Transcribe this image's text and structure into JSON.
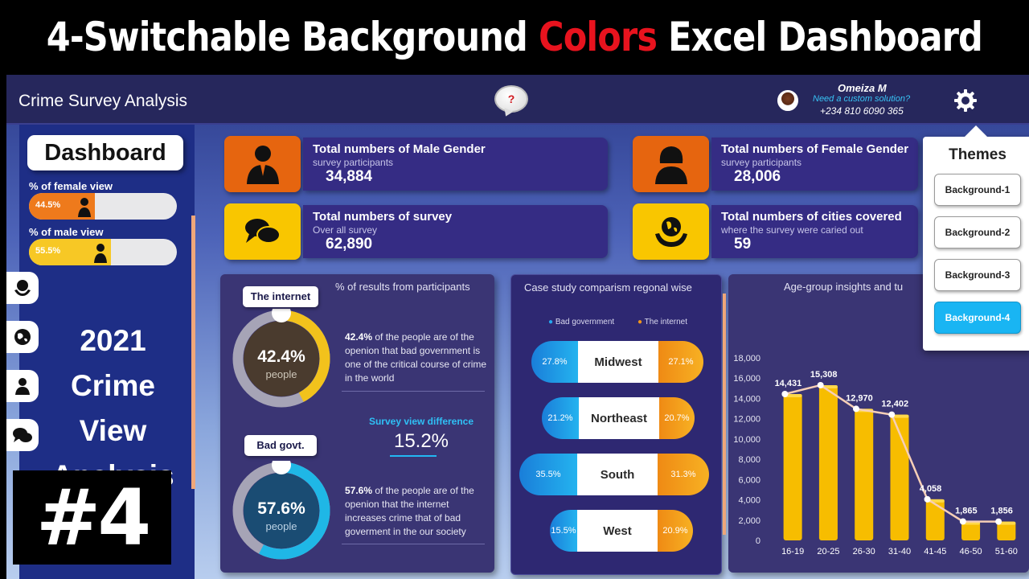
{
  "banner": {
    "part1": "4-Switchable Background ",
    "highlight": "Colors",
    "part2": " Excel Dashboard"
  },
  "header": {
    "title": "Crime Survey Analysis",
    "help_icon": "?",
    "user": {
      "name": "Omeiza M",
      "tagline": "Need a custom solution?",
      "phone": "+234 810 6090 365"
    }
  },
  "sidebar": {
    "dashboard_label": "Dashboard",
    "female_label": "% of female view",
    "female_value": "44.5%",
    "male_label": "% of male view",
    "male_value": "55.5%",
    "headline": [
      "2021",
      "Crime",
      "View",
      "Analysis"
    ]
  },
  "badge": "#4",
  "kpis": [
    {
      "title": "Total numbers of Male Gender",
      "sub": "survey participants",
      "value": "34,884"
    },
    {
      "title": "Total numbers of Female Gender",
      "sub": "survey participants",
      "value": "28,006"
    },
    {
      "title": "Total numbers of survey",
      "sub": "Over all survey",
      "value": "62,890"
    },
    {
      "title": "Total numbers of cities covered",
      "sub": "where the survey were caried out",
      "value": "59"
    }
  ],
  "results_panel": {
    "title": "% of results from participants",
    "internet": {
      "label": "The internet",
      "pct": "42.4%",
      "unit": "people",
      "fraction": 0.424,
      "desc_bold": "42.4%",
      "desc": " of the people are of the openion that bad government is one of the critical course of crime in the world"
    },
    "diff_label": "Survey view difference",
    "diff_value": "15.2%",
    "govt": {
      "label": "Bad govt.",
      "pct": "57.6%",
      "unit": "people",
      "fraction": 0.576,
      "desc_bold": "57.6%",
      "desc": " of the people are of the openion that the internet increases crime that of bad goverment in the our society"
    }
  },
  "region_panel": {
    "title": "Case study comparism regonal wise",
    "legend": [
      "Bad government",
      "The internet"
    ],
    "rows": [
      {
        "region": "Midwest",
        "left": "27.8%",
        "right": "27.1%"
      },
      {
        "region": "Northeast",
        "left": "21.2%",
        "right": "20.7%"
      },
      {
        "region": "South",
        "left": "35.5%",
        "right": "31.3%"
      },
      {
        "region": "West",
        "left": "15.5%",
        "right": "20.9%"
      }
    ]
  },
  "age_panel": {
    "title": "Age-group insights and tu"
  },
  "chart_data": {
    "type": "bar",
    "title": "Age-group insights and tu",
    "categories": [
      "16-19",
      "20-25",
      "26-30",
      "31-40",
      "41-45",
      "46-50",
      "51-60"
    ],
    "values": [
      14431,
      15308,
      12970,
      12402,
      4058,
      1865,
      1856
    ],
    "data_labels": [
      "14,431",
      "15,308",
      "12,970",
      "12,402",
      "4,058",
      "1,865",
      "1,856"
    ],
    "ylim": [
      0,
      18000
    ],
    "yticks": [
      "0",
      "2,000",
      "4,000",
      "6,000",
      "8,000",
      "10,000",
      "12,000",
      "14,000",
      "16,000",
      "18,000"
    ],
    "grid": false,
    "overlay": "line",
    "bar_color": "#f7bd00",
    "line_color": "#f6cfb7"
  },
  "themes": {
    "title": "Themes",
    "buttons": [
      "Background-1",
      "Background-2",
      "Background-3",
      "Background-4"
    ],
    "active": 3
  },
  "colors": {
    "accent_orange": "#e86a10",
    "accent_yellow": "#f9c600",
    "panel": "#3a3574",
    "active_theme": "#19b5f3"
  },
  "icons": {
    "gear": "gear-icon",
    "help": "help-bubble-icon",
    "male": "male-user-icon",
    "female": "female-user-icon",
    "chat": "chat-bubbles-icon",
    "globe": "globe-hands-icon"
  }
}
